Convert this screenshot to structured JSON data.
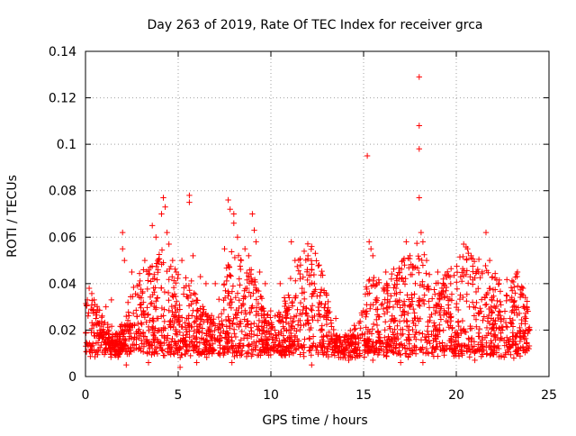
{
  "chart_data": {
    "type": "scatter",
    "title": "Day 263 of 2019, Rate Of TEC Index for receiver grca",
    "xlabel": "GPS time / hours",
    "ylabel": "ROTI / TECUs",
    "xlim": [
      0,
      25
    ],
    "ylim": [
      0,
      0.14
    ],
    "x_ticks": [
      0,
      5,
      10,
      15,
      20,
      25
    ],
    "x_tick_labels": [
      "0",
      "5",
      "10",
      "15",
      "20",
      "25"
    ],
    "y_ticks": [
      0,
      0.02,
      0.04,
      0.06,
      0.08,
      0.1,
      0.12,
      0.14
    ],
    "y_tick_labels": [
      "0",
      "0.02",
      "0.04",
      "0.06",
      "0.08",
      "0.1",
      "0.12",
      "0.14"
    ],
    "grid": true,
    "marker": "+",
    "series": [
      {
        "color": "#ff0000",
        "points": [
          [
            0.1,
            0.033
          ],
          [
            0.2,
            0.038
          ],
          [
            0.3,
            0.029
          ],
          [
            1.1,
            0.03
          ],
          [
            1.4,
            0.033
          ],
          [
            2.0,
            0.062
          ],
          [
            2.0,
            0.055
          ],
          [
            2.1,
            0.05
          ],
          [
            2.5,
            0.045
          ],
          [
            3.2,
            0.05
          ],
          [
            3.5,
            0.047
          ],
          [
            3.6,
            0.065
          ],
          [
            3.8,
            0.06
          ],
          [
            3.9,
            0.05
          ],
          [
            4.1,
            0.07
          ],
          [
            4.2,
            0.077
          ],
          [
            4.3,
            0.073
          ],
          [
            4.4,
            0.062
          ],
          [
            4.5,
            0.057
          ],
          [
            4.7,
            0.05
          ],
          [
            4.9,
            0.045
          ],
          [
            5.2,
            0.05
          ],
          [
            5.6,
            0.078
          ],
          [
            5.6,
            0.075
          ],
          [
            5.8,
            0.052
          ],
          [
            6.2,
            0.043
          ],
          [
            6.5,
            0.04
          ],
          [
            7.0,
            0.04
          ],
          [
            7.5,
            0.055
          ],
          [
            7.7,
            0.076
          ],
          [
            7.8,
            0.072
          ],
          [
            8.0,
            0.07
          ],
          [
            8.0,
            0.066
          ],
          [
            8.2,
            0.06
          ],
          [
            8.4,
            0.05
          ],
          [
            8.6,
            0.055
          ],
          [
            8.8,
            0.052
          ],
          [
            9.0,
            0.07
          ],
          [
            9.1,
            0.063
          ],
          [
            9.2,
            0.058
          ],
          [
            9.4,
            0.045
          ],
          [
            9.7,
            0.04
          ],
          [
            10.5,
            0.04
          ],
          [
            11.1,
            0.058
          ],
          [
            11.3,
            0.05
          ],
          [
            11.6,
            0.048
          ],
          [
            12.0,
            0.052
          ],
          [
            12.2,
            0.056
          ],
          [
            12.4,
            0.053
          ],
          [
            12.6,
            0.048
          ],
          [
            13.0,
            0.035
          ],
          [
            13.5,
            0.025
          ],
          [
            14.5,
            0.022
          ],
          [
            15.2,
            0.095
          ],
          [
            15.3,
            0.058
          ],
          [
            15.4,
            0.055
          ],
          [
            15.5,
            0.052
          ],
          [
            15.7,
            0.04
          ],
          [
            16.2,
            0.045
          ],
          [
            16.5,
            0.042
          ],
          [
            17.3,
            0.058
          ],
          [
            17.5,
            0.052
          ],
          [
            17.8,
            0.047
          ],
          [
            18.0,
            0.129
          ],
          [
            18.0,
            0.108
          ],
          [
            18.0,
            0.098
          ],
          [
            18.0,
            0.077
          ],
          [
            18.1,
            0.062
          ],
          [
            18.2,
            0.058
          ],
          [
            18.4,
            0.05
          ],
          [
            19.0,
            0.045
          ],
          [
            19.3,
            0.042
          ],
          [
            19.7,
            0.04
          ],
          [
            20.4,
            0.057
          ],
          [
            20.6,
            0.055
          ],
          [
            20.8,
            0.052
          ],
          [
            21.2,
            0.045
          ],
          [
            21.6,
            0.062
          ],
          [
            21.8,
            0.05
          ],
          [
            22.3,
            0.04
          ],
          [
            22.7,
            0.035
          ],
          [
            23.0,
            0.033
          ],
          [
            23.3,
            0.045
          ],
          [
            23.6,
            0.038
          ],
          [
            23.8,
            0.03
          ],
          [
            2.2,
            0.005
          ],
          [
            3.4,
            0.006
          ],
          [
            5.1,
            0.004
          ],
          [
            6.0,
            0.006
          ],
          [
            7.9,
            0.006
          ],
          [
            12.2,
            0.005
          ],
          [
            14.2,
            0.007
          ],
          [
            15.5,
            0.007
          ],
          [
            17.0,
            0.006
          ],
          [
            18.2,
            0.006
          ],
          [
            21.0,
            0.007
          ],
          [
            23.1,
            0.008
          ]
        ]
      }
    ]
  }
}
